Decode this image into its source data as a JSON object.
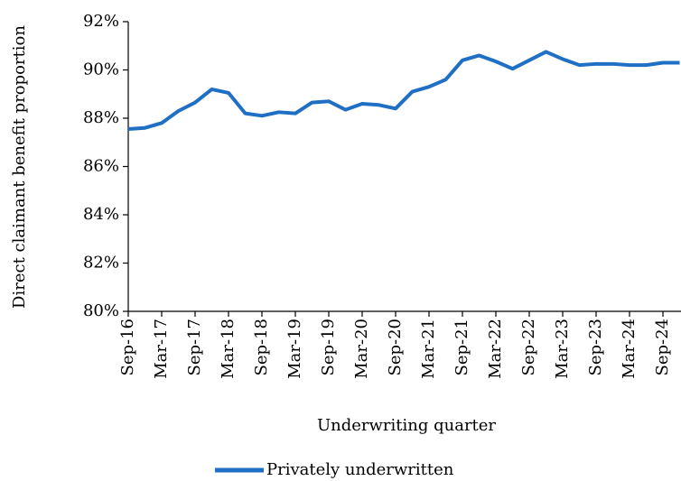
{
  "chart_data": {
    "type": "line",
    "x_label": "Underwriting quarter",
    "y_label": "Direct claimant benefit proportion",
    "categories": [
      "Sep-16",
      null,
      "Mar-17",
      null,
      "Sep-17",
      null,
      "Mar-18",
      null,
      "Sep-18",
      null,
      "Mar-19",
      null,
      "Sep-19",
      null,
      "Mar-20",
      null,
      "Sep-20",
      null,
      "Mar-21",
      null,
      "Sep-21",
      null,
      "Mar-22",
      null,
      "Sep-22",
      null,
      "Mar-23",
      null,
      "Sep-23",
      null,
      "Mar-24",
      null,
      "Sep-24",
      null
    ],
    "series": [
      {
        "name": "Privately underwritten",
        "color": "#1f6fc5",
        "values": [
          87.55,
          87.6,
          87.8,
          88.3,
          88.65,
          89.2,
          89.05,
          88.2,
          88.1,
          88.25,
          88.2,
          88.65,
          88.7,
          88.35,
          88.6,
          88.55,
          88.4,
          89.1,
          89.3,
          89.6,
          90.4,
          90.6,
          90.35,
          90.05,
          90.4,
          90.75,
          90.45,
          90.2,
          90.25,
          90.25,
          90.2,
          90.2,
          90.3,
          90.3
        ]
      }
    ],
    "ylim": [
      80,
      92
    ],
    "yticks": [
      {
        "value": 80,
        "label": "80%"
      },
      {
        "value": 82,
        "label": "82%"
      },
      {
        "value": 84,
        "label": "84%"
      },
      {
        "value": 86,
        "label": "86%"
      },
      {
        "value": 88,
        "label": "88%"
      },
      {
        "value": 90,
        "label": "90%"
      },
      {
        "value": 92,
        "label": "92%"
      }
    ],
    "grid": false,
    "legend": "bottom"
  }
}
